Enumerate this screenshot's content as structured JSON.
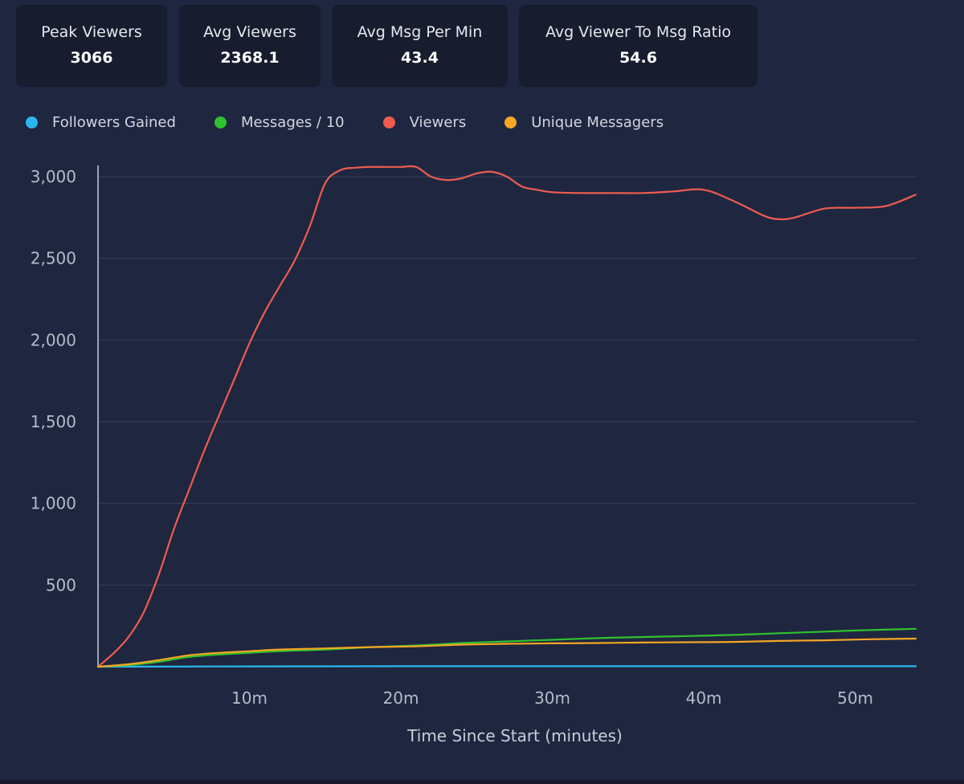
{
  "stats": [
    {
      "label": "Peak Viewers",
      "value": "3066"
    },
    {
      "label": "Avg Viewers",
      "value": "2368.1"
    },
    {
      "label": "Avg Msg Per Min",
      "value": "43.4"
    },
    {
      "label": "Avg Viewer To Msg Ratio",
      "value": "54.6"
    }
  ],
  "chart_data": {
    "type": "line",
    "xlabel": "Time Since Start (minutes)",
    "ylabel": "",
    "xlim": [
      0,
      54
    ],
    "ylim": [
      0,
      3000
    ],
    "y_ticks": [
      {
        "value": 500,
        "label": "500"
      },
      {
        "value": 1000,
        "label": "1,000"
      },
      {
        "value": 1500,
        "label": "1,500"
      },
      {
        "value": 2000,
        "label": "2,000"
      },
      {
        "value": 2500,
        "label": "2,500"
      },
      {
        "value": 3000,
        "label": "3,000"
      }
    ],
    "x_ticks": [
      {
        "value": 10,
        "label": "10m"
      },
      {
        "value": 20,
        "label": "20m"
      },
      {
        "value": 30,
        "label": "30m"
      },
      {
        "value": 40,
        "label": "40m"
      },
      {
        "value": 50,
        "label": "50m"
      }
    ],
    "grid": true,
    "legend_position": "top-left",
    "series": [
      {
        "name": "Followers Gained",
        "color": "#2bb6f0",
        "x": [
          0,
          10,
          20,
          30,
          40,
          50,
          54
        ],
        "y": [
          0,
          2,
          3,
          3,
          3,
          3,
          3
        ]
      },
      {
        "name": "Messages / 10",
        "color": "#2fc22f",
        "x": [
          0,
          2,
          4,
          6,
          8,
          10,
          12,
          15,
          18,
          21,
          24,
          27,
          30,
          33,
          36,
          39,
          42,
          45,
          48,
          51,
          54
        ],
        "y": [
          0,
          10,
          30,
          60,
          75,
          85,
          95,
          105,
          120,
          130,
          145,
          155,
          165,
          175,
          182,
          188,
          195,
          205,
          215,
          225,
          232
        ]
      },
      {
        "name": "Viewers",
        "color": "#ee5c4f",
        "x": [
          0,
          1,
          2,
          3,
          4,
          5,
          6,
          7,
          8,
          9,
          10,
          11,
          12,
          13,
          14,
          15,
          16,
          17,
          18,
          19,
          20,
          21,
          22,
          23,
          24,
          25,
          26,
          27,
          28,
          29,
          30,
          32,
          34,
          36,
          38,
          40,
          42,
          44,
          45,
          46,
          48,
          50,
          52,
          54
        ],
        "y": [
          0,
          80,
          180,
          330,
          560,
          840,
          1080,
          1320,
          1540,
          1760,
          1980,
          2170,
          2330,
          2490,
          2700,
          2960,
          3040,
          3055,
          3060,
          3060,
          3060,
          3060,
          3000,
          2980,
          2990,
          3020,
          3030,
          3000,
          2940,
          2920,
          2905,
          2900,
          2900,
          2900,
          2910,
          2920,
          2850,
          2760,
          2740,
          2750,
          2805,
          2810,
          2820,
          2890
        ]
      },
      {
        "name": "Unique Messagers",
        "color": "#f5a623",
        "x": [
          0,
          2,
          4,
          6,
          8,
          10,
          12,
          15,
          18,
          21,
          24,
          27,
          30,
          33,
          36,
          39,
          42,
          45,
          48,
          51,
          54
        ],
        "y": [
          0,
          15,
          40,
          70,
          85,
          95,
          105,
          112,
          120,
          125,
          135,
          140,
          143,
          145,
          148,
          150,
          152,
          158,
          162,
          168,
          172
        ]
      }
    ]
  }
}
